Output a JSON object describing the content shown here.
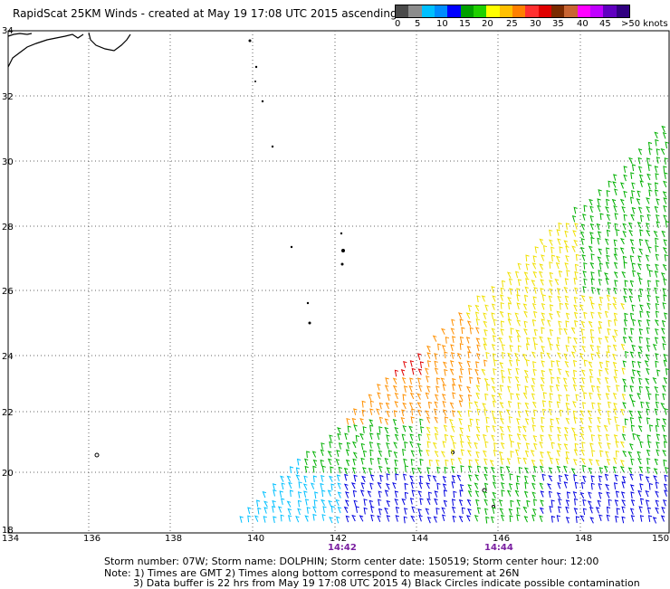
{
  "title": "RapidScat 25KM Winds - created at May 19 17:08 UTC 2015 ascending",
  "legend": {
    "colors": [
      "#4a4a4a",
      "#8c8c8c",
      "#00c0ff",
      "#008cff",
      "#0000ff",
      "#00a000",
      "#20d000",
      "#ffff00",
      "#ffc000",
      "#ff8000",
      "#ff3030",
      "#e00000",
      "#7a2a00",
      "#c86432",
      "#ff00ff",
      "#c000ff",
      "#6000c0",
      "#300080"
    ],
    "labels": [
      "0",
      "5",
      "10",
      "15",
      "20",
      "25",
      "30",
      "35",
      "40",
      "45",
      ">50 knots"
    ]
  },
  "axes": {
    "x_ticks": [
      "134",
      "136",
      "138",
      "140",
      "142",
      "144",
      "146",
      "148",
      "150"
    ],
    "y_ticks": [
      "34",
      "32",
      "30",
      "28",
      "26",
      "24",
      "22",
      "20",
      "18"
    ],
    "time_labels": [
      "14:42",
      "14:44"
    ]
  },
  "footer": {
    "line1": "Storm number: 07W;  Storm name: DOLPHIN;  Storm center date: 150519;  Storm center hour: 12:00",
    "line2": "Note: 1) Times are GMT  2) Times along bottom correspond to measurement at 26N",
    "line3": "3) Data buffer is 22 hrs from May 19 17:08 UTC 2015  4) Black Circles indicate possible contamination"
  },
  "wind_colors": {
    "cyan": "#00c0ff",
    "blue": "#0000e0",
    "green": "#00b000",
    "yellow": "#f0e000",
    "orange": "#ff9000",
    "red": "#e00000"
  }
}
